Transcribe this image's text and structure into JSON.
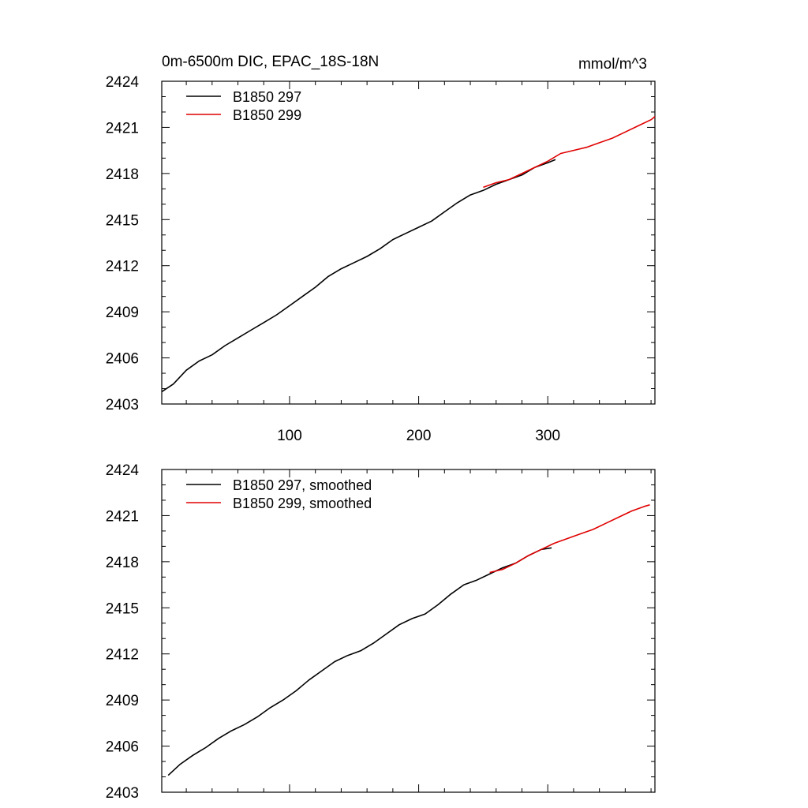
{
  "figure": {
    "left_title": "0m-6500m DIC, EPAC_18S-18N",
    "right_title": "mmol/m^3"
  },
  "chart_data": [
    {
      "type": "line",
      "title": "0m-6500m DIC, EPAC_18S-18N",
      "units": "mmol/m^3",
      "xlabel": "",
      "ylabel": "",
      "xlim": [
        1,
        383
      ],
      "ylim": [
        2403,
        2424
      ],
      "x_ticks": [
        100,
        200,
        300
      ],
      "x_tick_labels": [
        "100",
        "200",
        "300"
      ],
      "y_ticks": [
        2403,
        2406,
        2409,
        2412,
        2415,
        2418,
        2421,
        2424
      ],
      "y_tick_labels": [
        "2403",
        "2406",
        "2409",
        "2412",
        "2415",
        "2418",
        "2421",
        "2424"
      ],
      "legend": "top-left",
      "grid": false,
      "series": [
        {
          "name": "B1850 297",
          "color": "#000000",
          "x": [
            1,
            10,
            20,
            30,
            40,
            50,
            60,
            70,
            80,
            90,
            100,
            110,
            120,
            130,
            140,
            150,
            160,
            170,
            180,
            190,
            200,
            210,
            220,
            230,
            240,
            250,
            260,
            270,
            280,
            290,
            300,
            306
          ],
          "values": [
            2403.8,
            2404.3,
            2405.2,
            2405.8,
            2406.2,
            2406.8,
            2407.3,
            2407.8,
            2408.3,
            2408.8,
            2409.4,
            2410.0,
            2410.6,
            2411.3,
            2411.8,
            2412.2,
            2412.6,
            2413.1,
            2413.7,
            2414.1,
            2414.5,
            2414.9,
            2415.5,
            2416.1,
            2416.6,
            2416.9,
            2417.3,
            2417.6,
            2417.9,
            2418.4,
            2418.7,
            2418.9
          ]
        },
        {
          "name": "B1850 299",
          "color": "#e00000",
          "x": [
            250,
            260,
            270,
            280,
            290,
            300,
            310,
            320,
            330,
            340,
            350,
            360,
            370,
            380,
            383
          ],
          "values": [
            2417.1,
            2417.4,
            2417.6,
            2418.0,
            2418.4,
            2418.8,
            2419.3,
            2419.5,
            2419.7,
            2420.0,
            2420.3,
            2420.7,
            2421.1,
            2421.5,
            2421.7
          ]
        }
      ]
    },
    {
      "type": "line",
      "title": "",
      "xlabel": "",
      "ylabel": "",
      "xlim": [
        1,
        383
      ],
      "ylim": [
        2403,
        2424
      ],
      "x_ticks": [
        100,
        200,
        300
      ],
      "y_ticks": [
        2403,
        2406,
        2409,
        2412,
        2415,
        2418,
        2421,
        2424
      ],
      "y_tick_labels": [
        "2403",
        "2406",
        "2409",
        "2412",
        "2415",
        "2418",
        "2421",
        "2424"
      ],
      "legend": "top-left",
      "grid": false,
      "series": [
        {
          "name": "B1850 297, smoothed",
          "color": "#000000",
          "x": [
            6,
            15,
            25,
            35,
            45,
            55,
            65,
            75,
            85,
            95,
            105,
            115,
            125,
            135,
            145,
            155,
            165,
            175,
            185,
            195,
            205,
            215,
            225,
            235,
            245,
            255,
            265,
            275,
            285,
            295,
            303
          ],
          "values": [
            2404.1,
            2404.8,
            2405.4,
            2405.9,
            2406.5,
            2407.0,
            2407.4,
            2407.9,
            2408.5,
            2409.0,
            2409.6,
            2410.3,
            2410.9,
            2411.5,
            2411.9,
            2412.2,
            2412.7,
            2413.3,
            2413.9,
            2414.3,
            2414.6,
            2415.2,
            2415.9,
            2416.5,
            2416.8,
            2417.2,
            2417.6,
            2417.9,
            2418.4,
            2418.8,
            2418.9
          ]
        },
        {
          "name": "B1850 299, smoothed",
          "color": "#e00000",
          "x": [
            255,
            265,
            275,
            285,
            295,
            305,
            315,
            325,
            335,
            345,
            355,
            365,
            375,
            379
          ],
          "values": [
            2417.3,
            2417.5,
            2417.9,
            2418.4,
            2418.8,
            2419.2,
            2419.5,
            2419.8,
            2420.1,
            2420.5,
            2420.9,
            2421.3,
            2421.6,
            2421.7
          ]
        }
      ]
    }
  ]
}
